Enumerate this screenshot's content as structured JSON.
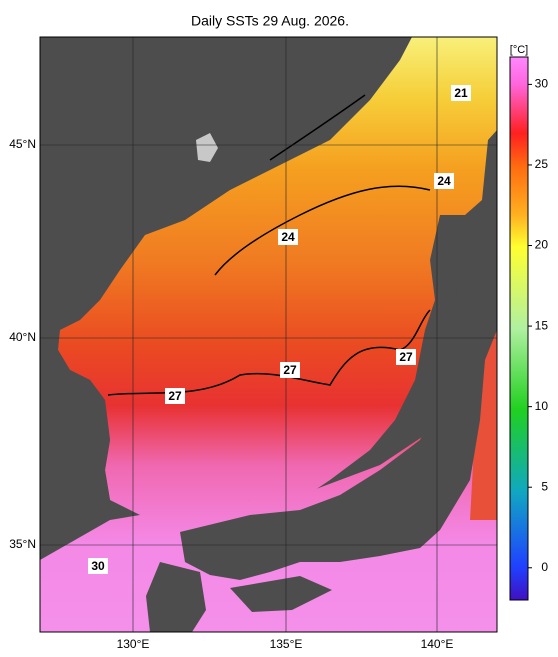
{
  "map": {
    "title": "Daily SSTs 29 Aug. 2026.",
    "lat_labels": [
      "45°N",
      "40°N",
      "35°N"
    ],
    "lon_labels": [
      "130°E",
      "135°E",
      "140°E"
    ],
    "contour_labels": [
      "21",
      "24",
      "24",
      "27",
      "27",
      "27",
      "30"
    ],
    "colorbar": {
      "label": "[°C]",
      "lim": [
        -2,
        31.7
      ],
      "ticks": [
        0,
        5,
        10,
        15,
        20,
        25,
        30
      ]
    }
  }
}
